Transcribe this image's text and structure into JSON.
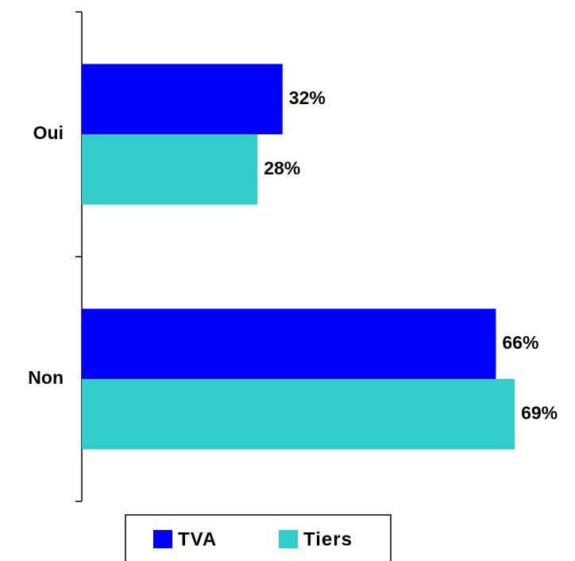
{
  "chart_data": {
    "type": "hbar",
    "categories": [
      "Oui",
      "Non"
    ],
    "series": [
      {
        "name": "TVA",
        "color": "#0000ff",
        "values": [
          32,
          66
        ],
        "value_labels": [
          "32%",
          "66%"
        ]
      },
      {
        "name": "Tiers",
        "color": "#33cccc",
        "values": [
          28,
          69
        ],
        "value_labels": [
          "28%",
          "69%"
        ]
      }
    ],
    "legend": "bottom"
  }
}
